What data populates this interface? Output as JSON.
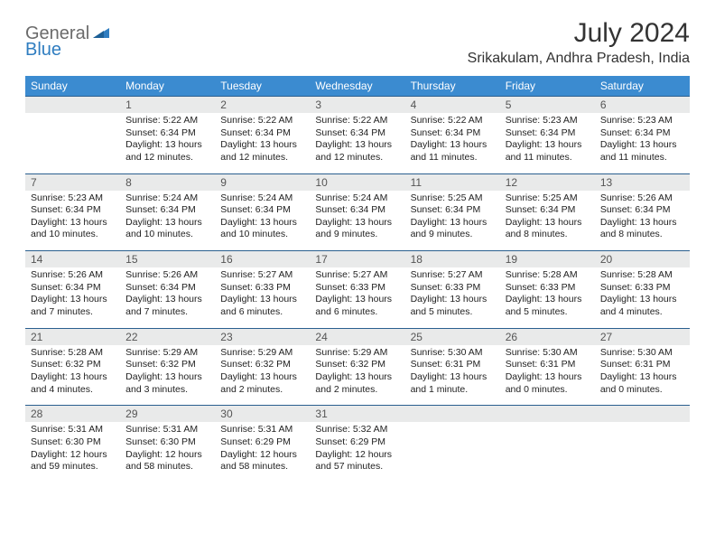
{
  "logo": {
    "part1": "General",
    "part2": "Blue"
  },
  "title": "July 2024",
  "location": "Srikakulam, Andhra Pradesh, India",
  "day_headers": [
    "Sunday",
    "Monday",
    "Tuesday",
    "Wednesday",
    "Thursday",
    "Friday",
    "Saturday"
  ],
  "colors": {
    "header_bg": "#3b8bd0",
    "header_text": "#ffffff",
    "daynum_bg": "#e9eaea",
    "border": "#2a5f8f",
    "logo_gray": "#6b6b6b",
    "logo_blue": "#2f7dc0"
  },
  "weeks": [
    {
      "nums": [
        "",
        "1",
        "2",
        "3",
        "4",
        "5",
        "6"
      ],
      "details": [
        {
          "sunrise": "",
          "sunset": "",
          "daylight": ""
        },
        {
          "sunrise": "Sunrise: 5:22 AM",
          "sunset": "Sunset: 6:34 PM",
          "daylight": "Daylight: 13 hours and 12 minutes."
        },
        {
          "sunrise": "Sunrise: 5:22 AM",
          "sunset": "Sunset: 6:34 PM",
          "daylight": "Daylight: 13 hours and 12 minutes."
        },
        {
          "sunrise": "Sunrise: 5:22 AM",
          "sunset": "Sunset: 6:34 PM",
          "daylight": "Daylight: 13 hours and 12 minutes."
        },
        {
          "sunrise": "Sunrise: 5:22 AM",
          "sunset": "Sunset: 6:34 PM",
          "daylight": "Daylight: 13 hours and 11 minutes."
        },
        {
          "sunrise": "Sunrise: 5:23 AM",
          "sunset": "Sunset: 6:34 PM",
          "daylight": "Daylight: 13 hours and 11 minutes."
        },
        {
          "sunrise": "Sunrise: 5:23 AM",
          "sunset": "Sunset: 6:34 PM",
          "daylight": "Daylight: 13 hours and 11 minutes."
        }
      ]
    },
    {
      "nums": [
        "7",
        "8",
        "9",
        "10",
        "11",
        "12",
        "13"
      ],
      "details": [
        {
          "sunrise": "Sunrise: 5:23 AM",
          "sunset": "Sunset: 6:34 PM",
          "daylight": "Daylight: 13 hours and 10 minutes."
        },
        {
          "sunrise": "Sunrise: 5:24 AM",
          "sunset": "Sunset: 6:34 PM",
          "daylight": "Daylight: 13 hours and 10 minutes."
        },
        {
          "sunrise": "Sunrise: 5:24 AM",
          "sunset": "Sunset: 6:34 PM",
          "daylight": "Daylight: 13 hours and 10 minutes."
        },
        {
          "sunrise": "Sunrise: 5:24 AM",
          "sunset": "Sunset: 6:34 PM",
          "daylight": "Daylight: 13 hours and 9 minutes."
        },
        {
          "sunrise": "Sunrise: 5:25 AM",
          "sunset": "Sunset: 6:34 PM",
          "daylight": "Daylight: 13 hours and 9 minutes."
        },
        {
          "sunrise": "Sunrise: 5:25 AM",
          "sunset": "Sunset: 6:34 PM",
          "daylight": "Daylight: 13 hours and 8 minutes."
        },
        {
          "sunrise": "Sunrise: 5:26 AM",
          "sunset": "Sunset: 6:34 PM",
          "daylight": "Daylight: 13 hours and 8 minutes."
        }
      ]
    },
    {
      "nums": [
        "14",
        "15",
        "16",
        "17",
        "18",
        "19",
        "20"
      ],
      "details": [
        {
          "sunrise": "Sunrise: 5:26 AM",
          "sunset": "Sunset: 6:34 PM",
          "daylight": "Daylight: 13 hours and 7 minutes."
        },
        {
          "sunrise": "Sunrise: 5:26 AM",
          "sunset": "Sunset: 6:34 PM",
          "daylight": "Daylight: 13 hours and 7 minutes."
        },
        {
          "sunrise": "Sunrise: 5:27 AM",
          "sunset": "Sunset: 6:33 PM",
          "daylight": "Daylight: 13 hours and 6 minutes."
        },
        {
          "sunrise": "Sunrise: 5:27 AM",
          "sunset": "Sunset: 6:33 PM",
          "daylight": "Daylight: 13 hours and 6 minutes."
        },
        {
          "sunrise": "Sunrise: 5:27 AM",
          "sunset": "Sunset: 6:33 PM",
          "daylight": "Daylight: 13 hours and 5 minutes."
        },
        {
          "sunrise": "Sunrise: 5:28 AM",
          "sunset": "Sunset: 6:33 PM",
          "daylight": "Daylight: 13 hours and 5 minutes."
        },
        {
          "sunrise": "Sunrise: 5:28 AM",
          "sunset": "Sunset: 6:33 PM",
          "daylight": "Daylight: 13 hours and 4 minutes."
        }
      ]
    },
    {
      "nums": [
        "21",
        "22",
        "23",
        "24",
        "25",
        "26",
        "27"
      ],
      "details": [
        {
          "sunrise": "Sunrise: 5:28 AM",
          "sunset": "Sunset: 6:32 PM",
          "daylight": "Daylight: 13 hours and 4 minutes."
        },
        {
          "sunrise": "Sunrise: 5:29 AM",
          "sunset": "Sunset: 6:32 PM",
          "daylight": "Daylight: 13 hours and 3 minutes."
        },
        {
          "sunrise": "Sunrise: 5:29 AM",
          "sunset": "Sunset: 6:32 PM",
          "daylight": "Daylight: 13 hours and 2 minutes."
        },
        {
          "sunrise": "Sunrise: 5:29 AM",
          "sunset": "Sunset: 6:32 PM",
          "daylight": "Daylight: 13 hours and 2 minutes."
        },
        {
          "sunrise": "Sunrise: 5:30 AM",
          "sunset": "Sunset: 6:31 PM",
          "daylight": "Daylight: 13 hours and 1 minute."
        },
        {
          "sunrise": "Sunrise: 5:30 AM",
          "sunset": "Sunset: 6:31 PM",
          "daylight": "Daylight: 13 hours and 0 minutes."
        },
        {
          "sunrise": "Sunrise: 5:30 AM",
          "sunset": "Sunset: 6:31 PM",
          "daylight": "Daylight: 13 hours and 0 minutes."
        }
      ]
    },
    {
      "nums": [
        "28",
        "29",
        "30",
        "31",
        "",
        "",
        ""
      ],
      "details": [
        {
          "sunrise": "Sunrise: 5:31 AM",
          "sunset": "Sunset: 6:30 PM",
          "daylight": "Daylight: 12 hours and 59 minutes."
        },
        {
          "sunrise": "Sunrise: 5:31 AM",
          "sunset": "Sunset: 6:30 PM",
          "daylight": "Daylight: 12 hours and 58 minutes."
        },
        {
          "sunrise": "Sunrise: 5:31 AM",
          "sunset": "Sunset: 6:29 PM",
          "daylight": "Daylight: 12 hours and 58 minutes."
        },
        {
          "sunrise": "Sunrise: 5:32 AM",
          "sunset": "Sunset: 6:29 PM",
          "daylight": "Daylight: 12 hours and 57 minutes."
        },
        {
          "sunrise": "",
          "sunset": "",
          "daylight": ""
        },
        {
          "sunrise": "",
          "sunset": "",
          "daylight": ""
        },
        {
          "sunrise": "",
          "sunset": "",
          "daylight": ""
        }
      ]
    }
  ]
}
